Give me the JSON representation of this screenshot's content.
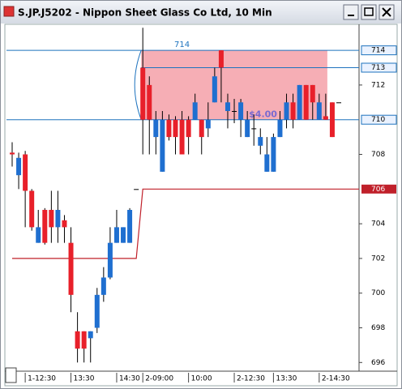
{
  "window": {
    "title": "S.JP.J5202 - Nippon Sheet Glass Co Ltd, 10 Min"
  },
  "chart_data": {
    "type": "candlestick",
    "up_color": "#e8202a",
    "down_color": "#1f6fd0",
    "ylim": [
      695.5,
      715.5
    ],
    "yticks": [
      696,
      698,
      700,
      702,
      704,
      708,
      712
    ],
    "categories": [
      null,
      null,
      "1-12:30",
      null,
      null,
      null,
      null,
      null,
      null,
      "13:30",
      null,
      null,
      null,
      null,
      null,
      null,
      "14:30",
      null,
      null,
      null,
      "2-09:00",
      null,
      null,
      null,
      null,
      null,
      null,
      "10:00",
      null,
      null,
      null,
      null,
      null,
      null,
      "2-12:30",
      null,
      null,
      null,
      null,
      null,
      "13:30",
      null,
      null,
      null,
      null,
      null,
      null,
      "2-14:30",
      null,
      null,
      null
    ],
    "candles": [
      [
        708.0,
        708.7,
        707.3,
        708.1
      ],
      [
        707.8,
        708.1,
        706.0,
        706.8
      ],
      [
        705.9,
        708.2,
        703.8,
        708.0
      ],
      [
        703.8,
        706.0,
        703.6,
        705.9
      ],
      [
        703.8,
        704.8,
        702.9,
        702.9
      ],
      [
        702.9,
        704.9,
        702.8,
        704.8
      ],
      [
        703.8,
        705.9,
        702.9,
        704.8
      ],
      [
        704.8,
        705.9,
        702.9,
        703.8
      ],
      [
        703.8,
        704.5,
        702.9,
        704.2
      ],
      [
        699.9,
        703.8,
        698.9,
        702.9
      ],
      [
        696.8,
        698.9,
        696.0,
        697.8
      ],
      [
        696.8,
        697.8,
        696.0,
        697.8
      ],
      [
        697.8,
        697.8,
        696.0,
        697.4
      ],
      [
        699.9,
        700.3,
        697.7,
        698.0
      ],
      [
        700.9,
        701.5,
        699.5,
        699.9
      ],
      [
        702.9,
        703.8,
        700.8,
        700.9
      ],
      [
        703.8,
        704.8,
        702.9,
        702.9
      ],
      [
        703.8,
        703.8,
        702.9,
        702.9
      ],
      [
        704.8,
        704.9,
        702.9,
        702.9
      ],
      [
        706,
        706,
        706,
        706
      ],
      [
        710.0,
        715.3,
        708.0,
        713.0
      ],
      [
        710.0,
        712.5,
        708.0,
        712.0
      ],
      [
        710.0,
        710.5,
        708.0,
        709.0
      ],
      [
        710.0,
        710.5,
        707.0,
        707.0
      ],
      [
        709.0,
        710.3,
        708.8,
        710.0
      ],
      [
        709.0,
        710.2,
        708.0,
        710.0
      ],
      [
        708.0,
        710.5,
        708.0,
        710.0
      ],
      [
        709.0,
        710.2,
        708.0,
        710.0
      ],
      [
        711.0,
        711.5,
        710.0,
        710.0
      ],
      [
        709.0,
        710.0,
        708.0,
        710.0
      ],
      [
        710.0,
        711.0,
        709.0,
        709.5
      ],
      [
        712.5,
        713.0,
        711.0,
        711.0
      ],
      [
        713.0,
        714.0,
        711.0,
        714.0
      ],
      [
        711.0,
        711.5,
        709.5,
        710.5
      ],
      [
        710.5,
        711.2,
        709.8,
        710.5
      ],
      [
        711.0,
        711.2,
        709.0,
        710.0
      ],
      [
        710.0,
        710.5,
        709.0,
        709.0
      ],
      [
        709.5,
        710.3,
        708.5,
        709.5
      ],
      [
        709.0,
        709.5,
        708.0,
        708.5
      ],
      [
        708.0,
        709.0,
        707.0,
        707.0
      ],
      [
        709.0,
        709.2,
        707.0,
        707.0
      ],
      [
        710.0,
        710.5,
        709.0,
        709.0
      ],
      [
        711.0,
        711.5,
        709.5,
        710.0
      ],
      [
        710.0,
        711.5,
        709.5,
        711.0
      ],
      [
        712.0,
        712.0,
        710.0,
        710.0
      ],
      [
        710.0,
        712.0,
        710.0,
        712.0
      ],
      [
        711.0,
        712.0,
        710.0,
        712.0
      ],
      [
        711.0,
        711.5,
        710.0,
        710.0
      ],
      [
        710.0,
        711.5,
        710.0,
        710.2
      ],
      [
        709.0,
        711.0,
        709.0,
        711.0
      ],
      [
        711.0,
        711.0,
        711.0,
        711.0
      ]
    ],
    "overlay": {
      "color": "#c0202a",
      "values": [
        702,
        702,
        702,
        702,
        702,
        702,
        702,
        702,
        702,
        702,
        702,
        702,
        702,
        702,
        702,
        702,
        702,
        702,
        702,
        702,
        706,
        706,
        706,
        706,
        706,
        706,
        706,
        706,
        706,
        706,
        706,
        706,
        706,
        706,
        706,
        706,
        706,
        706,
        706,
        706,
        706,
        706,
        706,
        706,
        706,
        706,
        706,
        706,
        706,
        706,
        706
      ]
    },
    "price_lines": [
      {
        "value": 714,
        "color": "#1e73be"
      },
      {
        "value": 713,
        "color": "#1e73be"
      },
      {
        "value": 710,
        "color": "#1e73be"
      }
    ],
    "range_box": {
      "high": 714,
      "low": 710,
      "label": "$4.00",
      "color": "#f4a0a8"
    }
  }
}
